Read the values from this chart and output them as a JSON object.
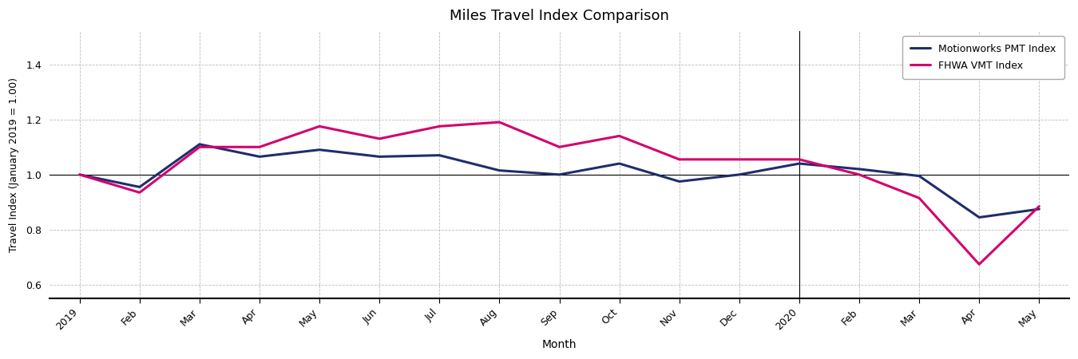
{
  "title": "Miles Travel Index Comparison",
  "xlabel": "Month",
  "ylabel": "Travel Index (January 2019 = 1.00)",
  "x_labels": [
    "2019",
    "Feb",
    "Mar",
    "Apr",
    "May",
    "Jun",
    "Jul",
    "Aug",
    "Sep",
    "Oct",
    "Nov",
    "Dec",
    "2020",
    "Feb",
    "Mar",
    "Apr",
    "May"
  ],
  "pmt_values": [
    1.0,
    0.955,
    1.11,
    1.065,
    1.09,
    1.065,
    1.07,
    1.015,
    1.0,
    1.04,
    0.975,
    1.0,
    1.04,
    1.02,
    0.995,
    0.845,
    0.875
  ],
  "vmt_values": [
    1.0,
    0.935,
    1.1,
    1.1,
    1.175,
    1.13,
    1.175,
    1.19,
    1.1,
    1.14,
    1.055,
    1.055,
    1.055,
    1.0,
    0.915,
    0.675,
    0.885
  ],
  "pmt_color": "#1f2d6e",
  "vmt_color": "#d4006e",
  "pmt_label": "Motionworks PMT Index",
  "vmt_label": "FHWA VMT Index",
  "ylim": [
    0.55,
    1.52
  ],
  "yticks": [
    0.6,
    0.8,
    1.0,
    1.2,
    1.4
  ],
  "vline_index": 12,
  "hline_y": 1.0,
  "background_color": "#ffffff",
  "plot_bg_color": "#ffffff",
  "grid_color": "#bbbbbb",
  "figsize": [
    13.5,
    4.5
  ],
  "dpi": 100,
  "line_width": 2.2,
  "title_fontsize": 13,
  "tick_fontsize": 9,
  "label_fontsize": 10,
  "ylabel_fontsize": 9
}
